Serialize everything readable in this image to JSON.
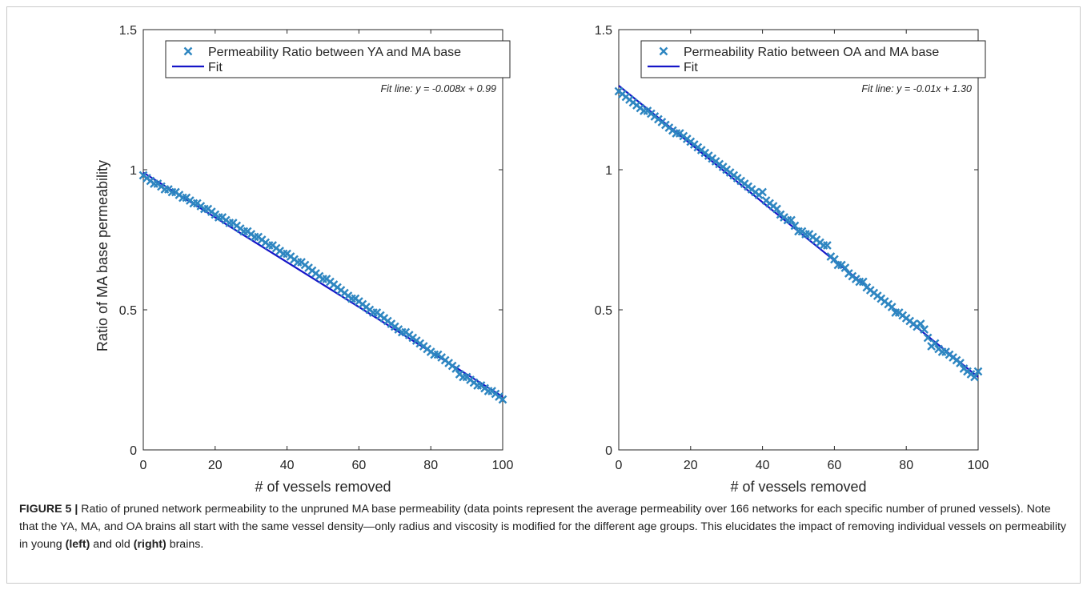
{
  "chart_data": [
    {
      "type": "scatter",
      "xlabel": "# of vessels removed",
      "ylabel": "Ratio of MA base permeability",
      "xlim": [
        0,
        100
      ],
      "ylim": [
        0,
        1.5
      ],
      "xticks": [
        "0",
        "20",
        "40",
        "60",
        "80",
        "100"
      ],
      "yticks": [
        "0",
        "0.5",
        "1",
        "1.5"
      ],
      "legend_position": "top",
      "series": [
        {
          "name": "Permeability Ratio between YA and MA base",
          "marker": "x",
          "color": "#2e86c1",
          "x": [
            0,
            1,
            2,
            3,
            4,
            5,
            6,
            7,
            8,
            9,
            10,
            11,
            12,
            13,
            14,
            15,
            16,
            17,
            18,
            19,
            20,
            21,
            22,
            23,
            24,
            25,
            26,
            27,
            28,
            29,
            30,
            31,
            32,
            33,
            34,
            35,
            36,
            37,
            38,
            39,
            40,
            41,
            42,
            43,
            44,
            45,
            46,
            47,
            48,
            49,
            50,
            51,
            52,
            53,
            54,
            55,
            56,
            57,
            58,
            59,
            60,
            61,
            62,
            63,
            64,
            65,
            66,
            67,
            68,
            69,
            70,
            71,
            72,
            73,
            74,
            75,
            76,
            77,
            78,
            79,
            80,
            81,
            82,
            83,
            84,
            85,
            86,
            87,
            88,
            89,
            90,
            91,
            92,
            93,
            94,
            95,
            96,
            97,
            98,
            99,
            100
          ],
          "y": [
            0.98,
            0.97,
            0.96,
            0.95,
            0.95,
            0.94,
            0.93,
            0.93,
            0.92,
            0.92,
            0.91,
            0.9,
            0.9,
            0.89,
            0.88,
            0.88,
            0.87,
            0.86,
            0.86,
            0.85,
            0.84,
            0.83,
            0.83,
            0.82,
            0.81,
            0.81,
            0.8,
            0.79,
            0.78,
            0.78,
            0.77,
            0.76,
            0.76,
            0.75,
            0.74,
            0.73,
            0.73,
            0.72,
            0.71,
            0.7,
            0.7,
            0.69,
            0.68,
            0.67,
            0.67,
            0.66,
            0.65,
            0.64,
            0.63,
            0.62,
            0.61,
            0.61,
            0.6,
            0.59,
            0.58,
            0.57,
            0.56,
            0.55,
            0.54,
            0.54,
            0.53,
            0.52,
            0.51,
            0.5,
            0.49,
            0.49,
            0.48,
            0.47,
            0.46,
            0.45,
            0.44,
            0.43,
            0.42,
            0.42,
            0.41,
            0.4,
            0.39,
            0.38,
            0.37,
            0.36,
            0.35,
            0.34,
            0.34,
            0.33,
            0.32,
            0.31,
            0.3,
            0.29,
            0.27,
            0.26,
            0.26,
            0.25,
            0.24,
            0.23,
            0.23,
            0.22,
            0.21,
            0.21,
            0.2,
            0.19,
            0.18
          ]
        },
        {
          "name": "Fit",
          "type": "line",
          "color": "#1515c8",
          "x": [
            0,
            100
          ],
          "y": [
            0.99,
            0.19
          ]
        }
      ],
      "annotation": "Fit line: y =  -0.008x + 0.99"
    },
    {
      "type": "scatter",
      "xlabel": "# of vessels removed",
      "ylabel": "",
      "xlim": [
        0,
        100
      ],
      "ylim": [
        0,
        1.5
      ],
      "xticks": [
        "0",
        "20",
        "40",
        "60",
        "80",
        "100"
      ],
      "yticks": [
        "0",
        "0.5",
        "1",
        "1.5"
      ],
      "legend_position": "top",
      "series": [
        {
          "name": "Permeability Ratio between OA and MA base",
          "marker": "x",
          "color": "#2e86c1",
          "x": [
            0,
            1,
            2,
            3,
            4,
            5,
            6,
            7,
            8,
            9,
            10,
            11,
            12,
            13,
            14,
            15,
            16,
            17,
            18,
            19,
            20,
            21,
            22,
            23,
            24,
            25,
            26,
            27,
            28,
            29,
            30,
            31,
            32,
            33,
            34,
            35,
            36,
            37,
            38,
            39,
            40,
            41,
            42,
            43,
            44,
            45,
            46,
            47,
            48,
            49,
            50,
            51,
            52,
            53,
            54,
            55,
            56,
            57,
            58,
            59,
            60,
            61,
            62,
            63,
            64,
            65,
            66,
            67,
            68,
            69,
            70,
            71,
            72,
            73,
            74,
            75,
            76,
            77,
            78,
            79,
            80,
            81,
            82,
            83,
            84,
            85,
            86,
            87,
            88,
            89,
            90,
            91,
            92,
            93,
            94,
            95,
            96,
            97,
            98,
            99,
            100
          ],
          "y": [
            1.28,
            1.27,
            1.26,
            1.25,
            1.24,
            1.23,
            1.22,
            1.21,
            1.21,
            1.2,
            1.19,
            1.18,
            1.17,
            1.16,
            1.15,
            1.14,
            1.13,
            1.13,
            1.12,
            1.11,
            1.1,
            1.09,
            1.08,
            1.07,
            1.06,
            1.05,
            1.04,
            1.03,
            1.02,
            1.01,
            1.0,
            0.99,
            0.98,
            0.97,
            0.96,
            0.95,
            0.94,
            0.93,
            0.92,
            0.91,
            0.92,
            0.89,
            0.88,
            0.87,
            0.86,
            0.84,
            0.83,
            0.82,
            0.82,
            0.8,
            0.78,
            0.78,
            0.77,
            0.77,
            0.76,
            0.75,
            0.74,
            0.73,
            0.73,
            0.69,
            0.68,
            0.66,
            0.66,
            0.65,
            0.63,
            0.62,
            0.61,
            0.6,
            0.6,
            0.58,
            0.57,
            0.56,
            0.55,
            0.54,
            0.53,
            0.52,
            0.51,
            0.49,
            0.49,
            0.48,
            0.47,
            0.46,
            0.45,
            0.44,
            0.45,
            0.43,
            0.4,
            0.37,
            0.38,
            0.36,
            0.35,
            0.35,
            0.34,
            0.33,
            0.32,
            0.31,
            0.29,
            0.28,
            0.27,
            0.26,
            0.28
          ]
        },
        {
          "name": "Fit",
          "type": "line",
          "color": "#1515c8",
          "x": [
            0,
            100
          ],
          "y": [
            1.3,
            0.26
          ]
        }
      ],
      "annotation": "Fit line: y =  -0.01x + 1.30"
    }
  ],
  "caption": {
    "label": "FIGURE 5 |",
    "text_1": " Ratio of pruned network permeability to the unpruned MA base permeability (data points represent the average permeability over 166 networks for each specific number of pruned vessels). Note that the YA, MA, and OA brains all start with the same vessel density—only radius and viscosity is modified for the different age groups. This elucidates the impact of removing individual vessels on permeability in young ",
    "left": "(left)",
    "text_2": " and old ",
    "right": "(right)",
    "text_3": " brains."
  }
}
